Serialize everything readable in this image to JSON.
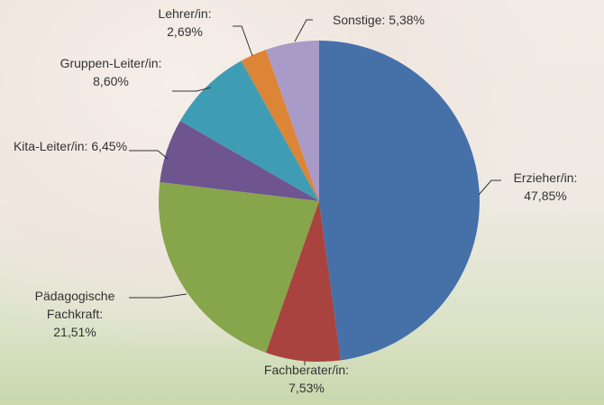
{
  "chart_data": {
    "type": "pie",
    "categories": [
      "Erzieher/in:",
      "Fachberater/in:",
      "Pädagogische Fachkraft:",
      "Kita-Leiter/in:",
      "Gruppen-Leiter/in:",
      "Lehrer/in:",
      "Sonstige:"
    ],
    "values": [
      47.85,
      7.53,
      21.51,
      6.45,
      8.6,
      2.69,
      5.38
    ],
    "value_labels": [
      "47,85%",
      "7,53%",
      "21,51%",
      "6,45%",
      "8,60%",
      "2,69%",
      "5,38%"
    ],
    "colors": [
      "#4571a8",
      "#a9433f",
      "#87a54b",
      "#6e558f",
      "#3e9db5",
      "#dc8537",
      "#a99bc8"
    ]
  }
}
